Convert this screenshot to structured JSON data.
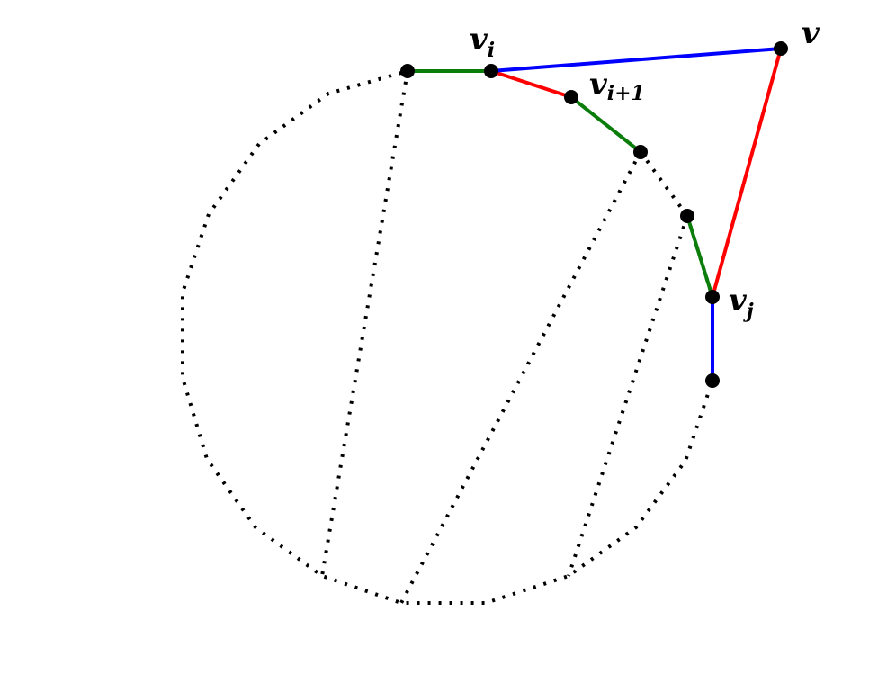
{
  "diagram": {
    "labels": {
      "v": "v",
      "vi_base": "v",
      "vi_sub": "i",
      "vi1_base": "v",
      "vi1_sub": "i+1",
      "vj_base": "v",
      "vj_sub": "j"
    }
  },
  "colors": {
    "polygon_outline": "#000000",
    "diagonal": "#000000",
    "vertex": "#000000",
    "green_edge": "#0a7d0a",
    "red_edge": "#ff0000",
    "blue_edge": "#0000ff"
  }
}
